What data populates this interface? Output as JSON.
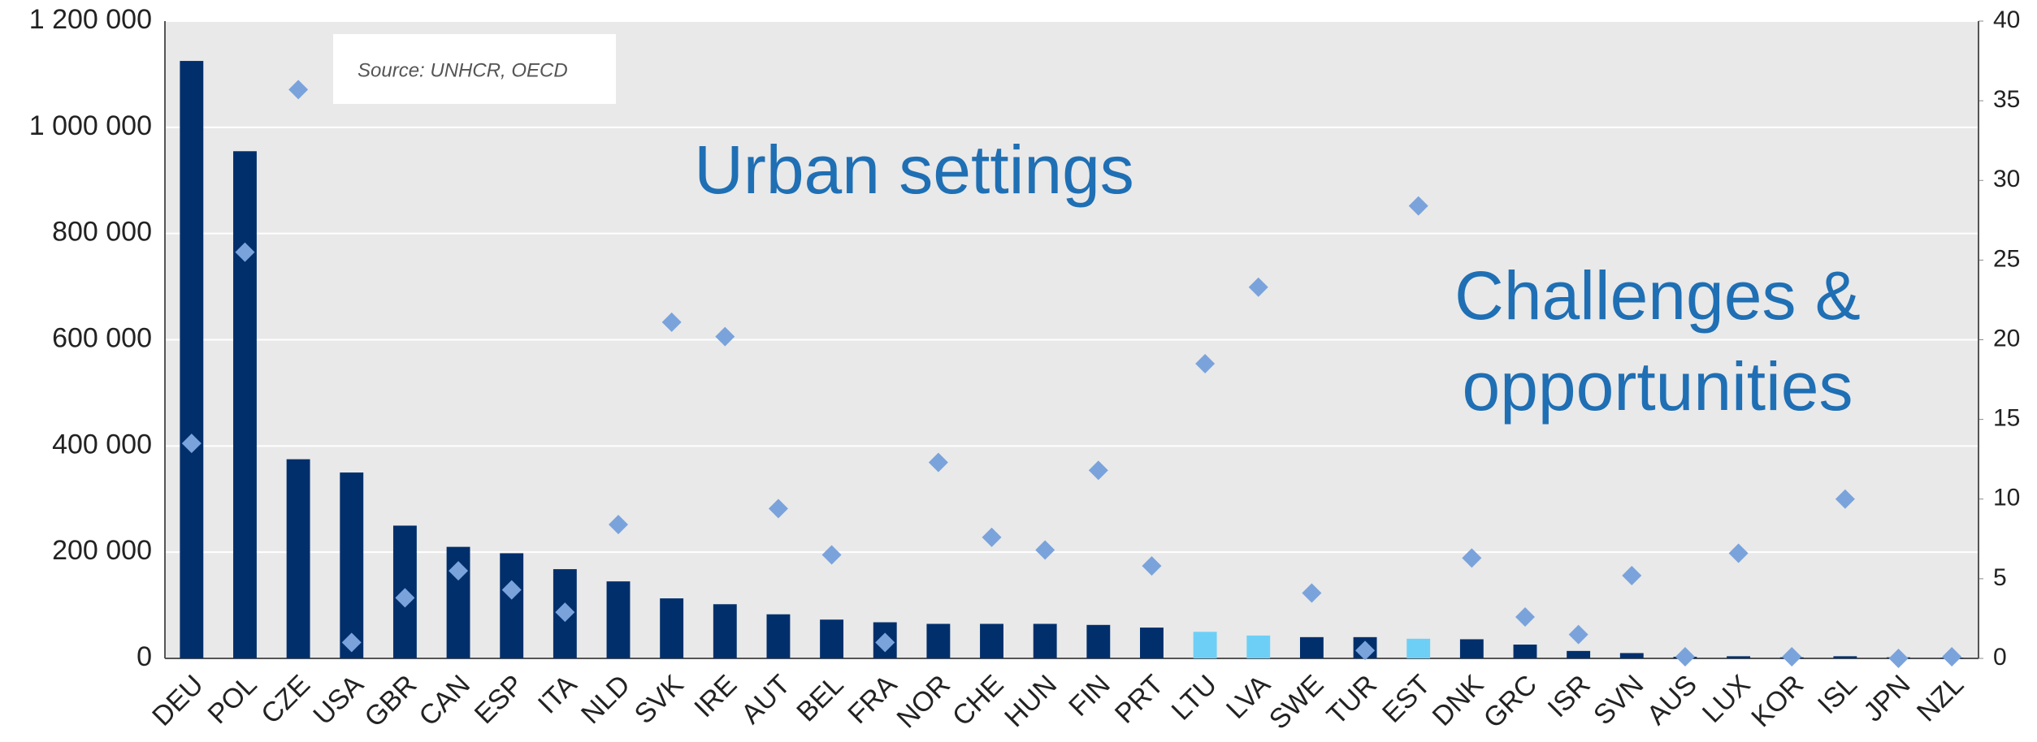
{
  "chart_data": {
    "type": "bar",
    "categories": [
      "DEU",
      "POL",
      "CZE",
      "USA",
      "GBR",
      "CAN",
      "ESP",
      "ITA",
      "NLD",
      "SVK",
      "IRE",
      "AUT",
      "BEL",
      "FRA",
      "NOR",
      "CHE",
      "HUN",
      "FIN",
      "PRT",
      "LTU",
      "LVA",
      "SWE",
      "TUR",
      "EST",
      "DNK",
      "GRC",
      "ISR",
      "SVN",
      "AUS",
      "LUX",
      "KOR",
      "ISL",
      "JPN",
      "NZL"
    ],
    "series": [
      {
        "type": "bar",
        "color": "#002f6c",
        "colors": [
          "#002f6c",
          "#002f6c",
          "#002f6c",
          "#002f6c",
          "#002f6c",
          "#002f6c",
          "#002f6c",
          "#002f6c",
          "#002f6c",
          "#002f6c",
          "#002f6c",
          "#002f6c",
          "#002f6c",
          "#002f6c",
          "#002f6c",
          "#002f6c",
          "#002f6c",
          "#002f6c",
          "#002f6c",
          "#6dcff6",
          "#6dcff6",
          "#002f6c",
          "#002f6c",
          "#6dcff6",
          "#002f6c",
          "#002f6c",
          "#002f6c",
          "#002f6c",
          "#002f6c",
          "#002f6c",
          "#002f6c",
          "#002f6c",
          "#002f6c",
          "#002f6c"
        ],
        "values": [
          1125000,
          955000,
          375000,
          350000,
          250000,
          210000,
          198000,
          168000,
          145000,
          113000,
          102000,
          83000,
          73000,
          68000,
          65000,
          65000,
          65000,
          63000,
          58000,
          50000,
          43000,
          40000,
          40000,
          37000,
          36000,
          26000,
          14000,
          10000,
          3000,
          4000,
          2000,
          4000,
          2000,
          1000
        ]
      },
      {
        "type": "scatter",
        "axis": "y2",
        "color": "#7aa3dc",
        "values": [
          13.5,
          25.5,
          35.7,
          1,
          3.8,
          5.5,
          4.3,
          2.9,
          8.4,
          21.1,
          20.2,
          9.4,
          6.5,
          1,
          12.3,
          7.6,
          6.8,
          11.8,
          5.8,
          18.5,
          23.3,
          4.1,
          0.5,
          28.4,
          6.3,
          2.6,
          1.5,
          5.2,
          0.1,
          6.6,
          0.1,
          10,
          0,
          0.1
        ]
      }
    ],
    "ylim": [
      0,
      1200000
    ],
    "yticks": [
      0,
      {
        "value": 200000,
        "label": "200 000"
      },
      {
        "value": 400000,
        "label": "400 000"
      },
      {
        "value": 600000,
        "label": "600 000"
      },
      {
        "value": 800000,
        "label": "800 000"
      },
      {
        "value": 1000000,
        "label": "1 000 000"
      },
      {
        "value": 1200000,
        "label": "1 200 000"
      }
    ],
    "y2lim": [
      0,
      40
    ],
    "y2ticks": [
      0,
      5,
      10,
      15,
      20,
      25,
      30,
      35,
      40
    ],
    "grid": true,
    "source": "Source: UNHCR, OECD",
    "annotations": [
      {
        "lines": [
          "Urban settings"
        ]
      },
      {
        "lines": [
          "Challenges &",
          "opportunities"
        ]
      }
    ]
  }
}
